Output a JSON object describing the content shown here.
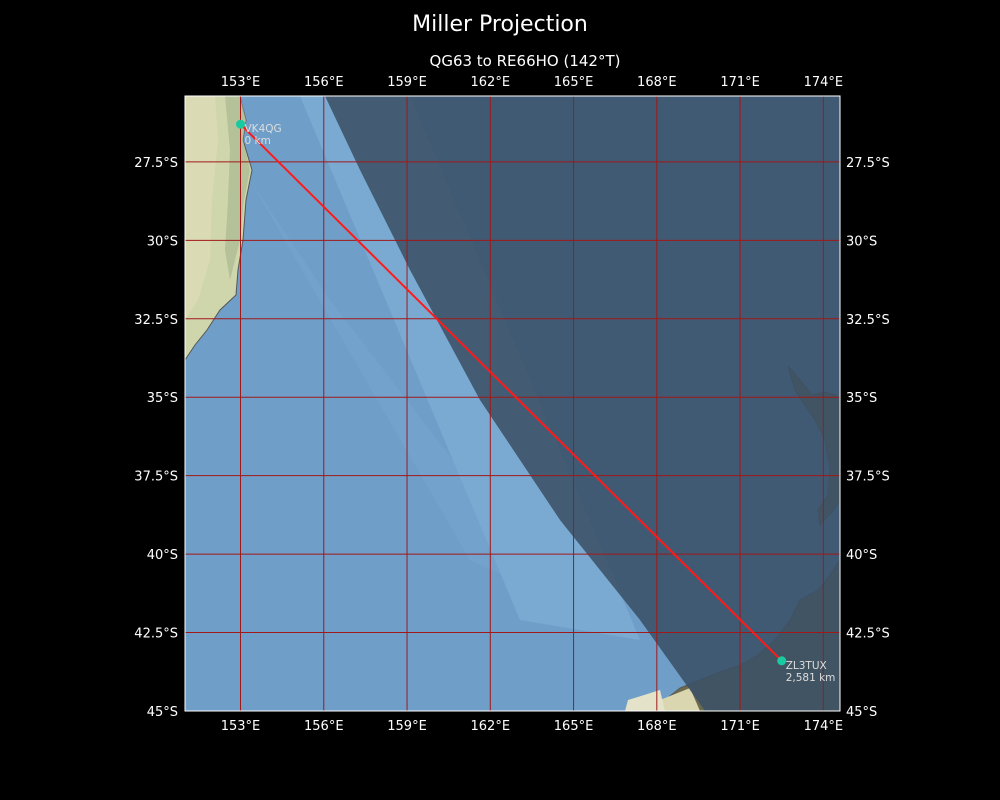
{
  "header": {
    "title": "Miller Projection",
    "subtitle": "QG63 to RE66HO (142°T)"
  },
  "map": {
    "extent": {
      "lon": [
        151,
        174.6
      ],
      "lat": [
        -45,
        -25.4
      ]
    },
    "lon_ticks": [
      153,
      156,
      159,
      162,
      165,
      168,
      171,
      174
    ],
    "lon_tick_labels": [
      "153°E",
      "156°E",
      "159°E",
      "162°E",
      "165°E",
      "168°E",
      "171°E",
      "174°E"
    ],
    "lat_ticks": [
      -27.5,
      -30,
      -32.5,
      -35,
      -37.5,
      -40,
      -42.5,
      -45
    ],
    "lat_tick_labels": [
      "27.5°S",
      "30°S",
      "32.5°S",
      "35°S",
      "37.5°S",
      "40°S",
      "42.5°S",
      "45°S"
    ],
    "colors": {
      "ocean": "#6f9fc8",
      "ocean_light": "#87b9e0",
      "land_light": "#d7ddb4",
      "land_dark": "#6d6a4e",
      "night": "#3b5166",
      "grid": "#a01818",
      "path": "#ff1a1a",
      "station": "#19c9a0"
    },
    "stations": [
      {
        "call": "VK4QG",
        "distance": "0 km",
        "lon": 153.0,
        "lat": -26.3
      },
      {
        "call": "ZL3TUX",
        "distance": "2,581 km",
        "lon": 172.5,
        "lat": -43.4
      }
    ]
  }
}
